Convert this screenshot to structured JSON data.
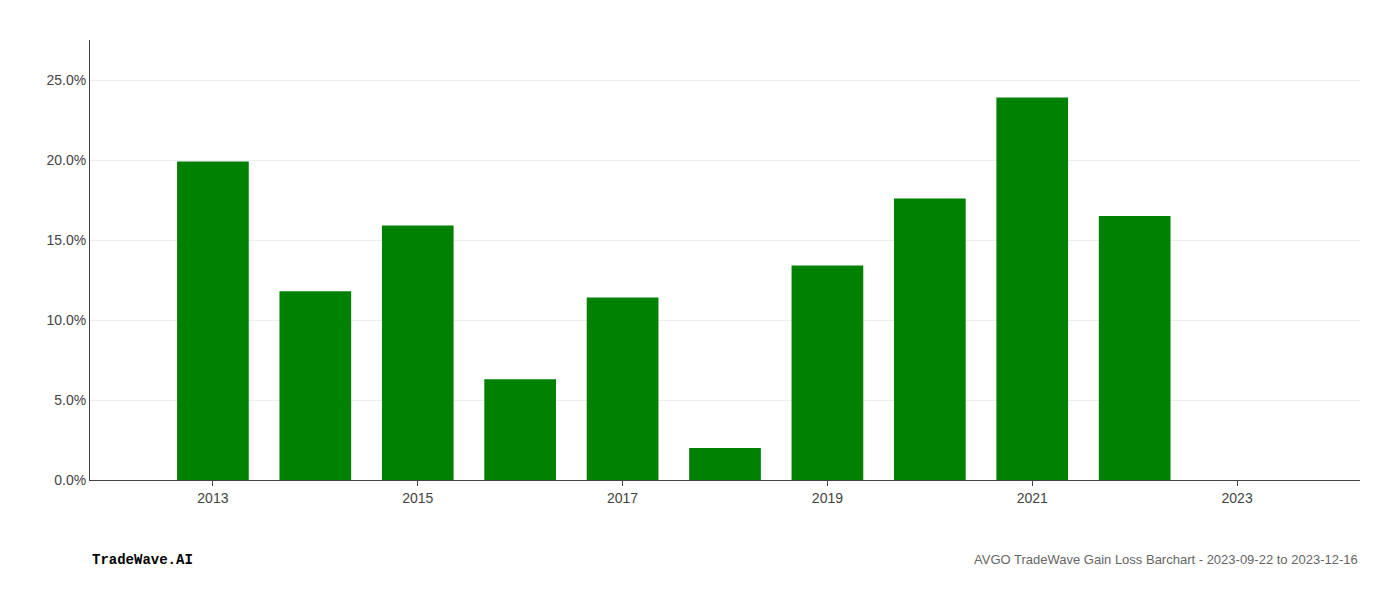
{
  "chart_data": {
    "type": "bar",
    "x": [
      2013,
      2014,
      2015,
      2016,
      2017,
      2018,
      2019,
      2020,
      2021,
      2022,
      2023
    ],
    "values": [
      0.199,
      0.118,
      0.159,
      0.063,
      0.114,
      0.02,
      0.134,
      0.176,
      0.239,
      0.165,
      0.0
    ],
    "color": "#008000",
    "xlim": [
      2011.8,
      2024.2
    ],
    "xticks": [
      2013,
      2015,
      2017,
      2019,
      2021,
      2023
    ],
    "ylim": [
      0,
      0.275
    ],
    "yticks": [
      {
        "value": 0.0,
        "label": "0.0%"
      },
      {
        "value": 0.05,
        "label": "5.0%"
      },
      {
        "value": 0.1,
        "label": "10.0%"
      },
      {
        "value": 0.15,
        "label": "15.0%"
      },
      {
        "value": 0.2,
        "label": "20.0%"
      },
      {
        "value": 0.25,
        "label": "25.0%"
      }
    ],
    "grid": true,
    "annotations": [
      "TradeWave.AI",
      "AVGO TradeWave Gain Loss Barchart - 2023-09-22 to 2023-12-16"
    ]
  }
}
